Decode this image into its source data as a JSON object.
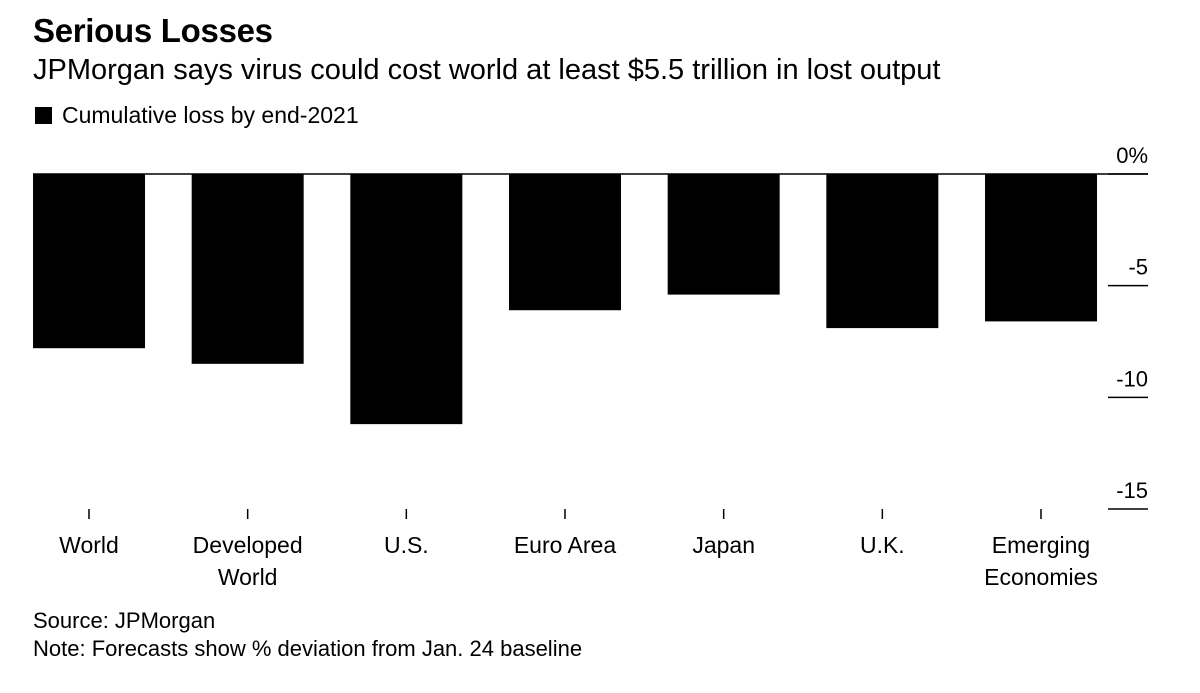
{
  "chart_data": {
    "type": "bar",
    "title": "Serious Losses",
    "subtitle": "JPMorgan says virus could cost world at least $5.5 trillion in lost output",
    "legend": [
      {
        "label": "Cumulative loss by end-2021",
        "color": "#000000"
      }
    ],
    "categories": [
      [
        "World"
      ],
      [
        "Developed",
        "World"
      ],
      [
        "U.S."
      ],
      [
        "Euro Area"
      ],
      [
        "Japan"
      ],
      [
        "U.K."
      ],
      [
        "Emerging",
        "Economies"
      ]
    ],
    "values": [
      -7.8,
      -8.5,
      -11.2,
      -6.1,
      -5.4,
      -6.9,
      -6.6
    ],
    "ylim": [
      -15,
      0
    ],
    "yticks": [
      0,
      -5,
      -10,
      -15
    ],
    "ytick_labels": [
      "0%",
      "-5",
      "-10",
      "-15"
    ],
    "y_axis_position": "right",
    "xlabel": "",
    "ylabel": "",
    "grid": false
  },
  "footer": {
    "source": "Source: JPMorgan",
    "note": "Note: Forecasts show % deviation from Jan. 24 baseline"
  }
}
